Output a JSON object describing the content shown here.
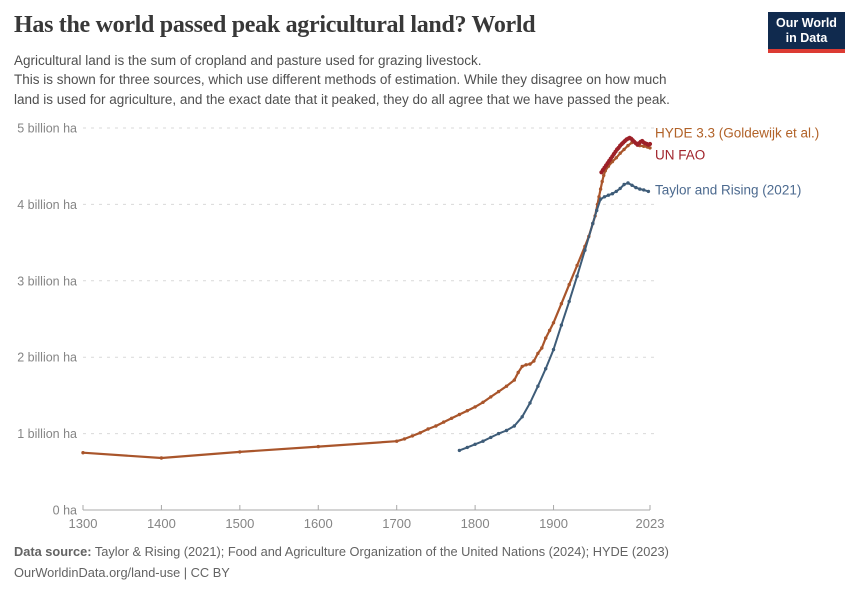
{
  "header": {
    "title": "Has the world passed peak agricultural land? World",
    "subtitle_lines": [
      "Agricultural land is the sum of cropland and pasture used for grazing livestock.",
      "This is shown for three sources, which use different methods of estimation. While they disagree on how much",
      "land is used for agriculture, and the exact date that it peaked, they do all agree that we have passed the peak."
    ],
    "logo": {
      "line1": "Our World",
      "line2": "in Data",
      "bg_color": "#102a4e",
      "accent_color": "#dc3b33"
    }
  },
  "chart_data": {
    "type": "line",
    "title": "Has the world passed peak agricultural land? World",
    "xlabel": "",
    "ylabel": "",
    "unit": "billion ha",
    "grid": "horizontal-dashed",
    "legend_position": "right-end-labels",
    "xlim": [
      1300,
      2023
    ],
    "ylim": [
      0,
      5
    ],
    "x_ticks": [
      1300,
      1400,
      1500,
      1600,
      1700,
      1800,
      1900,
      2023
    ],
    "y_ticks": [
      {
        "value": 0,
        "label": "0 ha"
      },
      {
        "value": 1,
        "label": "1 billion ha"
      },
      {
        "value": 2,
        "label": "2 billion ha"
      },
      {
        "value": 3,
        "label": "3 billion ha"
      },
      {
        "value": 4,
        "label": "4 billion ha"
      },
      {
        "value": 5,
        "label": "5 billion ha"
      }
    ],
    "series": [
      {
        "id": "hyde",
        "name": "HYDE 3.3 (Goldewijk et al.)",
        "color": "#a9552b",
        "label_color": "#b16228",
        "points": [
          [
            1300,
            0.75
          ],
          [
            1400,
            0.68
          ],
          [
            1500,
            0.76
          ],
          [
            1600,
            0.83
          ],
          [
            1700,
            0.9
          ],
          [
            1710,
            0.93
          ],
          [
            1720,
            0.97
          ],
          [
            1730,
            1.01
          ],
          [
            1740,
            1.06
          ],
          [
            1750,
            1.1
          ],
          [
            1760,
            1.15
          ],
          [
            1770,
            1.2
          ],
          [
            1780,
            1.25
          ],
          [
            1790,
            1.3
          ],
          [
            1800,
            1.35
          ],
          [
            1810,
            1.41
          ],
          [
            1820,
            1.48
          ],
          [
            1830,
            1.55
          ],
          [
            1840,
            1.62
          ],
          [
            1850,
            1.7
          ],
          [
            1855,
            1.8
          ],
          [
            1860,
            1.88
          ],
          [
            1865,
            1.9
          ],
          [
            1870,
            1.91
          ],
          [
            1875,
            1.95
          ],
          [
            1880,
            2.05
          ],
          [
            1885,
            2.12
          ],
          [
            1890,
            2.25
          ],
          [
            1895,
            2.35
          ],
          [
            1900,
            2.45
          ],
          [
            1910,
            2.7
          ],
          [
            1920,
            2.95
          ],
          [
            1930,
            3.2
          ],
          [
            1940,
            3.45
          ],
          [
            1945,
            3.58
          ],
          [
            1950,
            3.75
          ],
          [
            1953,
            3.85
          ],
          [
            1956,
            4.0
          ],
          [
            1958,
            4.1
          ],
          [
            1960,
            4.2
          ],
          [
            1962,
            4.3
          ],
          [
            1964,
            4.38
          ],
          [
            1966,
            4.44
          ],
          [
            1970,
            4.5
          ],
          [
            1975,
            4.56
          ],
          [
            1980,
            4.61
          ],
          [
            1985,
            4.67
          ],
          [
            1990,
            4.72
          ],
          [
            1995,
            4.77
          ],
          [
            2000,
            4.81
          ],
          [
            2003,
            4.82
          ],
          [
            2006,
            4.8
          ],
          [
            2010,
            4.77
          ],
          [
            2015,
            4.76
          ],
          [
            2020,
            4.75
          ],
          [
            2023,
            4.74
          ]
        ]
      },
      {
        "id": "fao",
        "name": "UN FAO",
        "color": "#9d2129",
        "label_color": "#a1242c",
        "points": [
          [
            1961,
            4.42
          ],
          [
            1963,
            4.45
          ],
          [
            1965,
            4.48
          ],
          [
            1967,
            4.51
          ],
          [
            1969,
            4.54
          ],
          [
            1971,
            4.57
          ],
          [
            1973,
            4.6
          ],
          [
            1975,
            4.63
          ],
          [
            1977,
            4.66
          ],
          [
            1979,
            4.69
          ],
          [
            1981,
            4.72
          ],
          [
            1983,
            4.74
          ],
          [
            1985,
            4.77
          ],
          [
            1987,
            4.79
          ],
          [
            1989,
            4.81
          ],
          [
            1991,
            4.83
          ],
          [
            1993,
            4.85
          ],
          [
            1995,
            4.86
          ],
          [
            1997,
            4.87
          ],
          [
            1999,
            4.86
          ],
          [
            2001,
            4.84
          ],
          [
            2003,
            4.82
          ],
          [
            2005,
            4.8
          ],
          [
            2007,
            4.78
          ],
          [
            2009,
            4.8
          ],
          [
            2011,
            4.82
          ],
          [
            2013,
            4.83
          ],
          [
            2015,
            4.81
          ],
          [
            2017,
            4.8
          ],
          [
            2019,
            4.79
          ],
          [
            2021,
            4.78
          ],
          [
            2023,
            4.79
          ]
        ]
      },
      {
        "id": "taylor",
        "name": "Taylor and Rising (2021)",
        "color": "#3e5c78",
        "label_color": "#4c6a8f",
        "points": [
          [
            1780,
            0.78
          ],
          [
            1790,
            0.82
          ],
          [
            1800,
            0.86
          ],
          [
            1810,
            0.9
          ],
          [
            1820,
            0.95
          ],
          [
            1830,
            1.0
          ],
          [
            1840,
            1.04
          ],
          [
            1850,
            1.1
          ],
          [
            1860,
            1.22
          ],
          [
            1870,
            1.4
          ],
          [
            1880,
            1.62
          ],
          [
            1890,
            1.85
          ],
          [
            1900,
            2.1
          ],
          [
            1910,
            2.42
          ],
          [
            1920,
            2.73
          ],
          [
            1930,
            3.06
          ],
          [
            1940,
            3.4
          ],
          [
            1950,
            3.75
          ],
          [
            1955,
            3.92
          ],
          [
            1960,
            4.07
          ],
          [
            1965,
            4.1
          ],
          [
            1970,
            4.12
          ],
          [
            1975,
            4.14
          ],
          [
            1980,
            4.17
          ],
          [
            1985,
            4.21
          ],
          [
            1990,
            4.26
          ],
          [
            1995,
            4.28
          ],
          [
            2000,
            4.25
          ],
          [
            2005,
            4.22
          ],
          [
            2010,
            4.2
          ],
          [
            2015,
            4.19
          ],
          [
            2021,
            4.17
          ]
        ]
      }
    ]
  },
  "footer": {
    "source_label": "Data source:",
    "source_text": " Taylor & Rising (2021); Food and Agriculture Organization of the United Nations (2024); HYDE (2023)",
    "attribution_url": "OurWorldinData.org/land-use",
    "attribution_separator": " | ",
    "attribution_license": "CC BY"
  }
}
